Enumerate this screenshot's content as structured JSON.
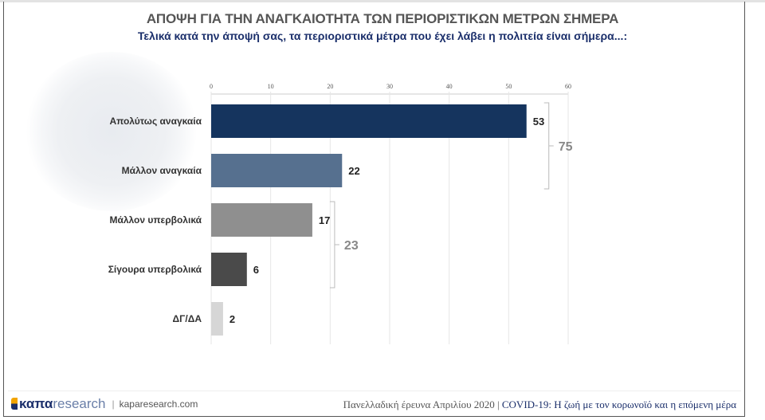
{
  "header": {
    "title": "ΑΠΟΨΗ ΓΙΑ ΤΗΝ ΑΝΑΓΚΑΙΟΤΗΤΑ ΤΩΝ ΠΕΡΙΟΡΙΣΤΙΚΩΝ ΜΕΤΡΩΝ ΣΗΜΕΡΑ",
    "subtitle": "Τελικά κατά την άποψή σας, τα περιοριστικά μέτρα που έχει λάβει η πολιτεία είναι σήμερα...:"
  },
  "chart_data": {
    "type": "bar",
    "orientation": "horizontal",
    "categories": [
      "Απολύτως αναγκαία",
      "Μάλλον αναγκαία",
      "Μάλλον υπερβολικά",
      "Σίγουρα υπερβολικά",
      "ΔΓ/ΔΑ"
    ],
    "values": [
      53,
      22,
      17,
      6,
      2
    ],
    "colors": [
      "#15345e",
      "#56708f",
      "#8f8f8f",
      "#4a4a4a",
      "#d6d6d6"
    ],
    "xlim": [
      0,
      60
    ],
    "xticks": [
      0,
      10,
      20,
      30,
      40,
      50,
      60
    ],
    "axis_position": "top",
    "grid": true,
    "groups": [
      {
        "label": "75",
        "from": 0,
        "to": 1
      },
      {
        "label": "23",
        "from": 2,
        "to": 3
      }
    ]
  },
  "footer": {
    "logo_bold": "καπα",
    "logo_light": "research",
    "site": "kaparesearch.com",
    "survey": "Πανελλαδική έρευνα Απριλίου 2020",
    "separator": "|",
    "survey_title": "COVID-19: Η ζωή με τον κορωνοϊό και η επόμενη μέρα"
  }
}
